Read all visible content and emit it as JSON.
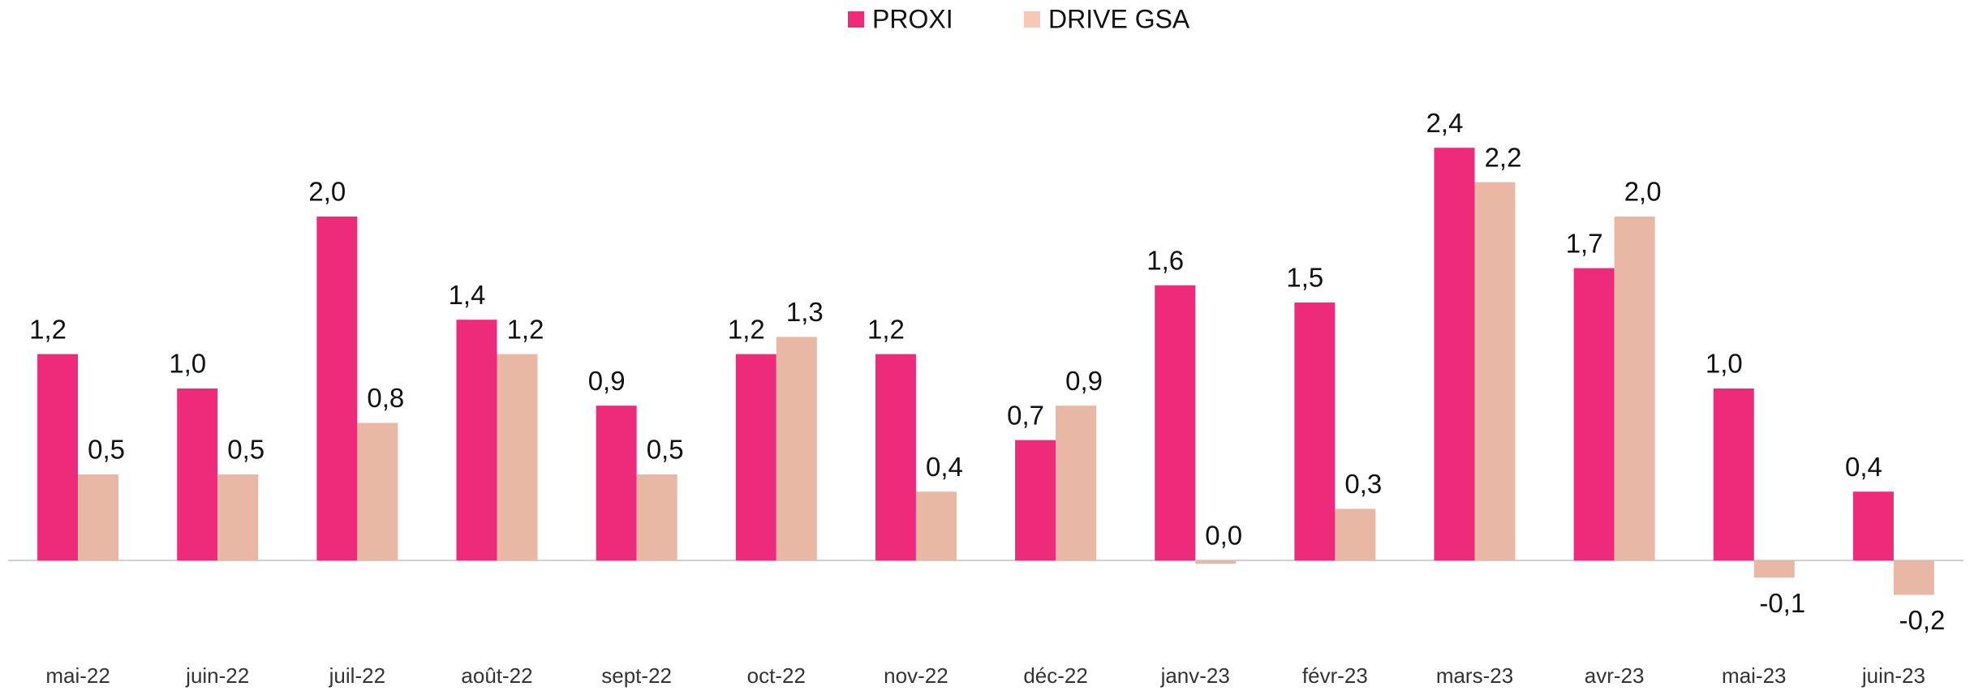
{
  "chart_data": {
    "type": "bar",
    "categories": [
      "mai-22",
      "juin-22",
      "juil-22",
      "août-22",
      "sept-22",
      "oct-22",
      "nov-22",
      "déc-22",
      "janv-23",
      "févr-23",
      "mars-23",
      "avr-23",
      "mai-23",
      "juin-23"
    ],
    "series": [
      {
        "name": "PROXI",
        "color": "#ee2a7b",
        "values": [
          1.2,
          1.0,
          2.0,
          1.4,
          0.9,
          1.2,
          1.2,
          0.7,
          1.6,
          1.5,
          2.4,
          1.7,
          1.0,
          0.4
        ],
        "value_labels": [
          "1,2",
          "1,0",
          "2,0",
          "1,4",
          "0,9",
          "1,2",
          "1,2",
          "0,7",
          "1,6",
          "1,5",
          "2,4",
          "1,7",
          "1,0",
          "0,4"
        ]
      },
      {
        "name": "DRIVE GSA",
        "color": "#e8b8a4",
        "values": [
          0.5,
          0.5,
          0.8,
          1.2,
          0.5,
          1.3,
          0.4,
          0.9,
          0.0,
          0.3,
          2.2,
          2.0,
          -0.1,
          -0.2
        ],
        "value_labels": [
          "0,5",
          "0,5",
          "0,8",
          "1,2",
          "0,5",
          "1,3",
          "0,4",
          "0,9",
          "0,0",
          "0,3",
          "2,2",
          "2,0",
          "-0,1",
          "-0,2"
        ]
      }
    ],
    "ylim": [
      -0.5,
      3
    ],
    "legend": "top"
  }
}
